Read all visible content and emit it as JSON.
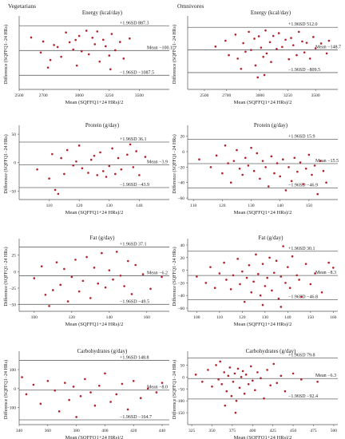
{
  "group_titles": {
    "left": "Vegetarians",
    "right": "Omnivores"
  },
  "chart_data": [
    {
      "type": "scatter",
      "group": "Vegetarians",
      "title": "Energy (kcal/day)",
      "xlabel": "Mean (SQFFQ1+24 HRs)/2",
      "ylabel": "Difference (SQFFQ1−24 HRs)",
      "xlim": [
        2500,
        3750
      ],
      "ylim": [
        -1650,
        1150
      ],
      "xticks": [
        2500,
        2700,
        3000,
        3250,
        3500
      ],
      "yticks": [],
      "grid": false,
      "lines": [
        {
          "name": "upper",
          "y": 887.3,
          "label": "+1.96SD 887.3"
        },
        {
          "name": "mean",
          "y": -100.1,
          "label": "Mean −100.1"
        },
        {
          "name": "lower",
          "y": -1087.5,
          "label": "−1.96SD −1087.5"
        }
      ],
      "x": [
        2600,
        2680,
        2700,
        2760,
        2790,
        2820,
        2850,
        2890,
        2920,
        2950,
        2970,
        3000,
        3020,
        3060,
        3080,
        3110,
        3130,
        3170,
        3200,
        3220,
        3250,
        3270,
        3300,
        3340,
        3370,
        3420,
        2740,
        2980,
        3150,
        3260
      ],
      "y": [
        420,
        -180,
        260,
        -480,
        120,
        40,
        -350,
        620,
        230,
        -60,
        320,
        480,
        -130,
        690,
        -250,
        410,
        150,
        -540,
        330,
        70,
        -300,
        560,
        -90,
        240,
        -420,
        380,
        -780,
        -700,
        660,
        -850
      ]
    },
    {
      "type": "scatter",
      "group": "Omnivores",
      "title": "Energy (kcal/day)",
      "xlabel": "Mean (SQFFQ1+24 HRs)/2",
      "ylabel": "Difference (SQFFQ1−24 HRs)",
      "xlim": [
        2350,
        3700
      ],
      "ylim": [
        -1300,
        750
      ],
      "xticks": [
        2500,
        2700,
        3000,
        3250,
        3500
      ],
      "yticks": [],
      "grid": false,
      "lines": [
        {
          "name": "upper",
          "y": 512.0,
          "label": "+1.96SD 512.0"
        },
        {
          "name": "mean",
          "y": -148.7,
          "label": "Mean −148.7"
        },
        {
          "name": "lower",
          "y": -809.5,
          "label": "−1.96SD −809.5"
        }
      ],
      "x": [
        2600,
        2690,
        2720,
        2780,
        2800,
        2850,
        2870,
        2900,
        2920,
        2950,
        2960,
        2990,
        3010,
        3030,
        3050,
        3060,
        3090,
        3100,
        3120,
        3150,
        3170,
        3200,
        3230,
        3260,
        3280,
        3300,
        3330,
        3350,
        3380,
        3400,
        3420,
        3450,
        3480,
        3500,
        3550,
        3600,
        3620,
        2830,
        2980,
        3040
      ],
      "y": [
        -50,
        120,
        -300,
        300,
        -400,
        50,
        -200,
        380,
        -150,
        180,
        -600,
        250,
        -80,
        -350,
        420,
        -250,
        80,
        -500,
        260,
        -120,
        340,
        -60,
        150,
        -420,
        200,
        -10,
        -300,
        380,
        100,
        -220,
        60,
        -400,
        230,
        -100,
        40,
        -250,
        120,
        -700,
        -950,
        -880
      ]
    },
    {
      "type": "scatter",
      "group": "Vegetarians",
      "title": "Protein (g/day)",
      "xlabel": "Mean (SQFFQ1+24 HRs)/2",
      "ylabel": "Difference (SQFFQ1−24 HRs)",
      "xlim": [
        100,
        150
      ],
      "ylim": [
        -65,
        60
      ],
      "xticks": [
        110,
        120,
        130,
        140
      ],
      "yticks": [
        50,
        0,
        -50
      ],
      "grid": false,
      "lines": [
        {
          "name": "upper",
          "y": 36.1,
          "label": "+1.96SD 36.1"
        },
        {
          "name": "mean",
          "y": -3.9,
          "label": "Mean −3.9"
        },
        {
          "name": "lower",
          "y": -43.9,
          "label": "−1.96SD −43.9"
        }
      ],
      "x": [
        106,
        110,
        111,
        112,
        113,
        114,
        115,
        116,
        118,
        119,
        120,
        121,
        123,
        124,
        125,
        126,
        127,
        128,
        129,
        130,
        131,
        132,
        133,
        134,
        136,
        137,
        138,
        139,
        140,
        142
      ],
      "y": [
        -12,
        -28,
        15,
        -48,
        -55,
        8,
        -20,
        22,
        -5,
        2,
        30,
        -10,
        -18,
        5,
        12,
        -22,
        18,
        -15,
        -25,
        -6,
        25,
        -20,
        8,
        -12,
        14,
        32,
        -8,
        20,
        -22,
        10
      ]
    },
    {
      "type": "scatter",
      "group": "Omnivores",
      "title": "Protein (g/day)",
      "xlabel": "Mean (SQFFQ1+24 HRs)/2",
      "ylabel": "Difference (SQFFQ1−24 HRs)",
      "xlim": [
        108,
        160
      ],
      "ylim": [
        -62,
        30
      ],
      "xticks": [
        110,
        120,
        130,
        140,
        150
      ],
      "yticks": [
        20,
        0,
        -20,
        -40,
        -60
      ],
      "grid": false,
      "lines": [
        {
          "name": "upper",
          "y": 15.9,
          "label": "+1.96SD 15.9"
        },
        {
          "name": "mean",
          "y": -15.5,
          "label": "Mean −15.5"
        },
        {
          "name": "lower",
          "y": -46.9,
          "label": "−1.96SD −46.9"
        }
      ],
      "x": [
        112,
        116,
        118,
        120,
        121,
        122,
        123,
        124,
        125,
        126,
        127,
        128,
        129,
        130,
        131,
        132,
        133,
        134,
        135,
        136,
        137,
        138,
        139,
        140,
        141,
        142,
        143,
        144,
        145,
        146,
        147,
        148,
        149,
        150,
        151,
        152,
        153,
        154,
        155,
        156
      ],
      "y": [
        -10,
        -20,
        -5,
        -28,
        8,
        -15,
        -40,
        -12,
        2,
        -22,
        -30,
        -8,
        -18,
        5,
        -25,
        -2,
        -35,
        -12,
        -20,
        -45,
        -6,
        -28,
        -15,
        -32,
        -10,
        -50,
        -20,
        -38,
        -8,
        -26,
        -14,
        -42,
        -22,
        -4,
        -30,
        -18,
        -55,
        -12,
        -25,
        -40
      ]
    },
    {
      "type": "scatter",
      "group": "Vegetarians",
      "title": "Fat (g/day)",
      "xlabel": "Mean (SQFFQ1+24 HRs)/2",
      "ylabel": "Difference (SQFFQ1−24 HRs)",
      "xlim": [
        92,
        172
      ],
      "ylim": [
        -60,
        45
      ],
      "xticks": [
        100,
        120,
        140,
        160
      ],
      "yticks": [
        25,
        0,
        -25,
        -50
      ],
      "grid": false,
      "lines": [
        {
          "name": "upper",
          "y": 37.1,
          "label": "+1.96SD 37.1"
        },
        {
          "name": "mean",
          "y": -6.2,
          "label": "Mean −6.2"
        },
        {
          "name": "lower",
          "y": -49.5,
          "label": "−1.96SD −49.5"
        }
      ],
      "x": [
        100,
        104,
        106,
        108,
        110,
        112,
        114,
        116,
        118,
        120,
        122,
        124,
        126,
        128,
        130,
        132,
        134,
        136,
        138,
        140,
        142,
        144,
        146,
        148,
        150,
        152,
        154,
        158,
        162,
        168
      ],
      "y": [
        -10,
        8,
        -35,
        -52,
        -28,
        14,
        -20,
        4,
        -45,
        -8,
        18,
        -30,
        -14,
        22,
        -40,
        6,
        -18,
        28,
        -24,
        2,
        -12,
        30,
        -6,
        -22,
        16,
        -34,
        10,
        -4,
        -26,
        -8
      ]
    },
    {
      "type": "scatter",
      "group": "Omnivores",
      "title": "Fat (g/day)",
      "xlabel": "Mean (SQFFQ1+24 HRs)/2",
      "ylabel": "Difference (SQFFQ1−24 HRs)",
      "xlim": [
        96,
        162
      ],
      "ylim": [
        -65,
        45
      ],
      "xticks": [
        100,
        110,
        120,
        130,
        140,
        150,
        160
      ],
      "yticks": [
        40,
        20,
        0,
        -20,
        -40,
        -60
      ],
      "grid": false,
      "lines": [
        {
          "name": "upper",
          "y": 30.1,
          "label": "+1.96SD 30.1"
        },
        {
          "name": "mean",
          "y": -8.3,
          "label": "Mean −8.3"
        },
        {
          "name": "lower",
          "y": -46.8,
          "label": "−1.96SD −46.8"
        }
      ],
      "x": [
        100,
        104,
        106,
        108,
        110,
        112,
        113,
        115,
        116,
        118,
        119,
        120,
        122,
        123,
        124,
        125,
        126,
        127,
        128,
        129,
        130,
        131,
        132,
        133,
        134,
        135,
        136,
        137,
        138,
        139,
        140,
        141,
        142,
        144,
        145,
        146,
        148,
        150,
        152,
        155,
        158,
        160,
        121,
        129,
        137
      ],
      "y": [
        -10,
        -20,
        5,
        -28,
        -5,
        12,
        -15,
        -30,
        -8,
        18,
        -22,
        -2,
        -12,
        8,
        -35,
        -18,
        25,
        -6,
        -40,
        10,
        -25,
        -12,
        20,
        -32,
        -4,
        15,
        -45,
        -10,
        38,
        -20,
        5,
        -28,
        22,
        -8,
        -15,
        -42,
        10,
        -22,
        -5,
        -35,
        12,
        4,
        -50,
        -55,
        -58
      ]
    },
    {
      "type": "scatter",
      "group": "Vegetarians",
      "title": "Carbohydrates (g/day)",
      "xlabel": "Mean (SQFFQ1+24 HRs)/2",
      "ylabel": "Difference (SQFFQ1−24 HRs)",
      "xlim": [
        340,
        445
      ],
      "ylim": [
        -190,
        180
      ],
      "xticks": [
        340,
        360,
        380,
        400,
        420,
        440
      ],
      "yticks": [
        100,
        0,
        -100
      ],
      "grid": false,
      "lines": [
        {
          "name": "upper",
          "y": 148.8,
          "label": "+1.96SD 148.8"
        },
        {
          "name": "mean",
          "y": -8.0,
          "label": "Mean −8.0"
        },
        {
          "name": "lower",
          "y": -164.7,
          "label": "−1.96SD −164.7"
        }
      ],
      "x": [
        342,
        345,
        350,
        355,
        360,
        365,
        368,
        372,
        375,
        378,
        380,
        383,
        386,
        390,
        393,
        396,
        400,
        404,
        408,
        412,
        416,
        420,
        425,
        430,
        436,
        440
      ],
      "y": [
        60,
        -30,
        20,
        -80,
        40,
        -10,
        -120,
        30,
        -60,
        10,
        -150,
        -40,
        50,
        -20,
        -90,
        15,
        80,
        -70,
        -30,
        25,
        -110,
        40,
        -50,
        0,
        -20,
        30
      ]
    },
    {
      "type": "scatter",
      "group": "Omnivores",
      "title": "Carbohydrates (g/day)",
      "xlabel": "Mean (SQFFQ1+24 HRs)/2",
      "ylabel": "Difference (SQFFQ1−24 HRs)",
      "xlim": [
        320,
        505
      ],
      "ylim": [
        -200,
        95
      ],
      "xticks": [
        325,
        350,
        375,
        400,
        425,
        450,
        475,
        500
      ],
      "yticks": [
        50,
        0,
        -50,
        -100,
        -150
      ],
      "grid": false,
      "lines": [
        {
          "name": "upper",
          "y": 79.8,
          "label": "+1.96SD 79.8"
        },
        {
          "name": "mean",
          "y": -6.3,
          "label": "Mean −6.3"
        },
        {
          "name": "lower",
          "y": -92.4,
          "label": "−1.96SD −92.4"
        }
      ],
      "x": [
        330,
        338,
        345,
        350,
        355,
        358,
        360,
        362,
        365,
        368,
        370,
        372,
        374,
        376,
        378,
        380,
        382,
        384,
        386,
        388,
        390,
        392,
        395,
        398,
        400,
        403,
        406,
        410,
        414,
        418,
        422,
        426,
        430,
        435,
        440,
        450,
        460,
        480,
        366,
        379
      ],
      "y": [
        10,
        -20,
        30,
        -40,
        50,
        -10,
        65,
        -30,
        20,
        -60,
        5,
        40,
        -80,
        -20,
        15,
        -100,
        35,
        -45,
        0,
        25,
        -70,
        10,
        -30,
        45,
        -15,
        -55,
        20,
        -5,
        -90,
        30,
        -35,
        55,
        -25,
        5,
        -60,
        15,
        -10,
        -20,
        -120,
        -150
      ]
    }
  ]
}
